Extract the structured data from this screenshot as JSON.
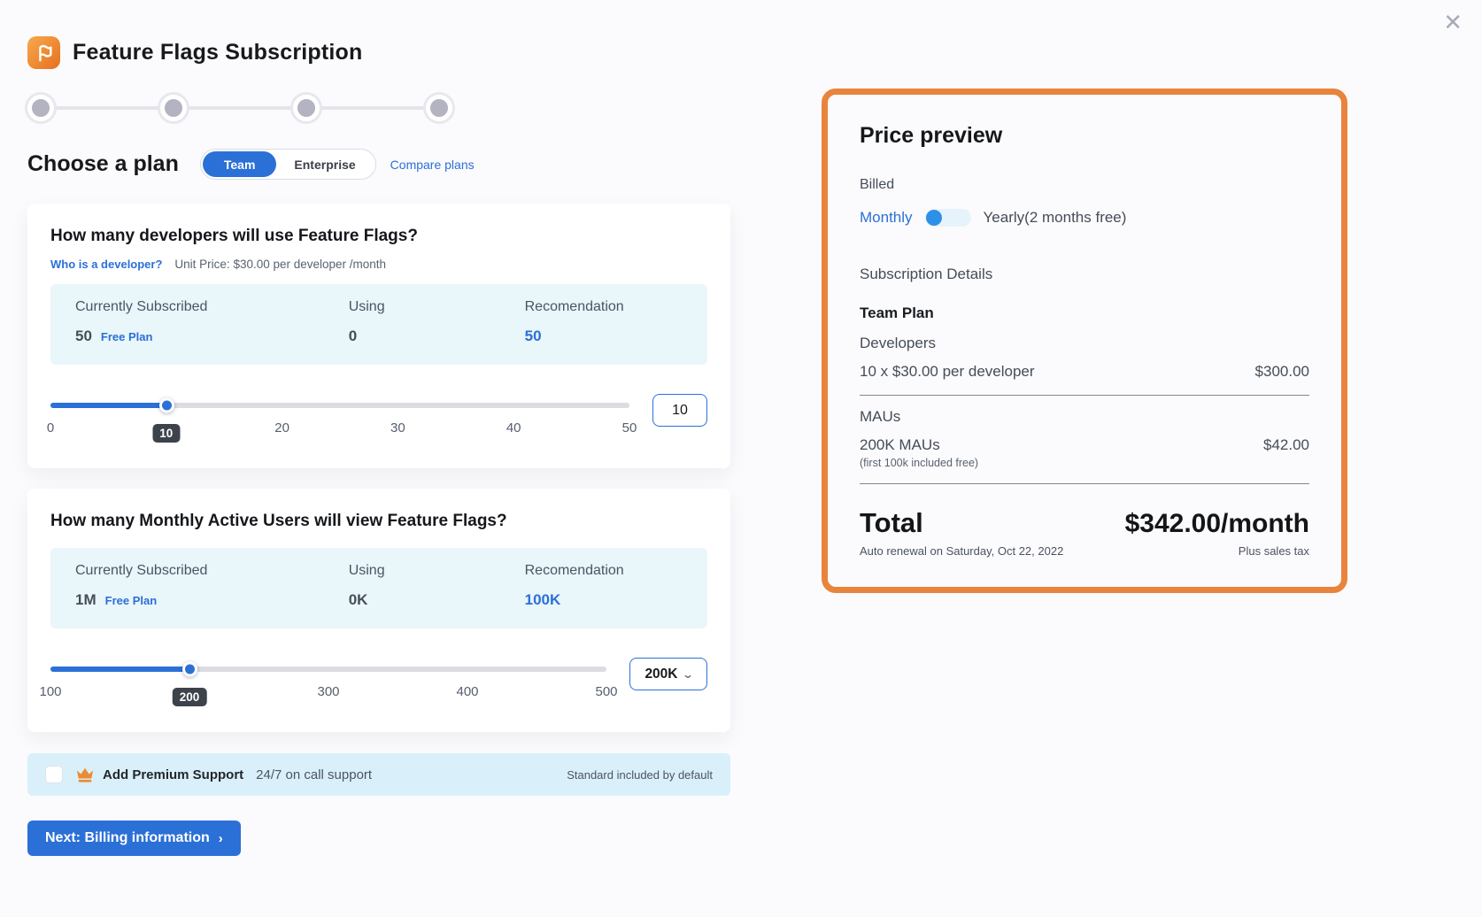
{
  "header": {
    "title": "Feature Flags Subscription",
    "close": "✕"
  },
  "plan_chooser": {
    "heading": "Choose a plan",
    "team_label": "Team",
    "enterprise_label": "Enterprise",
    "selected": "Team",
    "compare_link": "Compare plans"
  },
  "developers_card": {
    "title": "How many developers will use Feature Flags?",
    "link": "Who is a developer?",
    "unit_price": "Unit Price: $30.00 per developer /month",
    "table": {
      "headers": [
        "Currently Subscribed",
        "Using",
        "Recomendation"
      ],
      "current_value": "50",
      "current_plan": "Free Plan",
      "using": "0",
      "recommendation": "50"
    },
    "slider": {
      "percent": 20,
      "ticks": [
        "0",
        "10",
        "20",
        "30",
        "40",
        "50"
      ],
      "value": "10"
    },
    "input_value": "10"
  },
  "maus_card": {
    "title": "How many Monthly Active Users will view Feature Flags?",
    "table": {
      "headers": [
        "Currently Subscribed",
        "Using",
        "Recomendation"
      ],
      "current_value": "1M",
      "current_plan": "Free Plan",
      "using": "0K",
      "recommendation": "100K"
    },
    "slider": {
      "percent": 25,
      "ticks": [
        "100",
        "200",
        "300",
        "400",
        "500"
      ],
      "value": "200"
    },
    "select_value": "200K",
    "select_chevron": "⌄"
  },
  "premium_banner": {
    "title": "Add Premium Support",
    "subtitle": "24/7 on call support",
    "note": "Standard included by default"
  },
  "next_button": {
    "label": "Next: Billing information",
    "chevron": "›"
  },
  "price_preview": {
    "title": "Price preview",
    "billed_label": "Billed",
    "monthly_label": "Monthly",
    "yearly_label": "Yearly(2 months free)",
    "section_title": "Subscription Details",
    "plan_name": "Team Plan",
    "developers_label": "Developers",
    "developers_line": "10 x $30.00 per developer",
    "developers_amount": "$300.00",
    "maus_label": "MAUs",
    "maus_line": "200K MAUs",
    "maus_note": "(first 100k included free)",
    "maus_amount": "$42.00",
    "total_label": "Total",
    "total_amount": "$342.00/month",
    "renewal_note": "Auto renewal on Saturday, Oct 22, 2022",
    "tax_note": "Plus sales tax"
  },
  "colors": {
    "accent_blue": "#2b70d7",
    "accent_orange": "#e8843c",
    "table_bg": "#e9f6fa",
    "banner_bg": "#d9f0fa",
    "badge_bg": "#3d434b"
  }
}
